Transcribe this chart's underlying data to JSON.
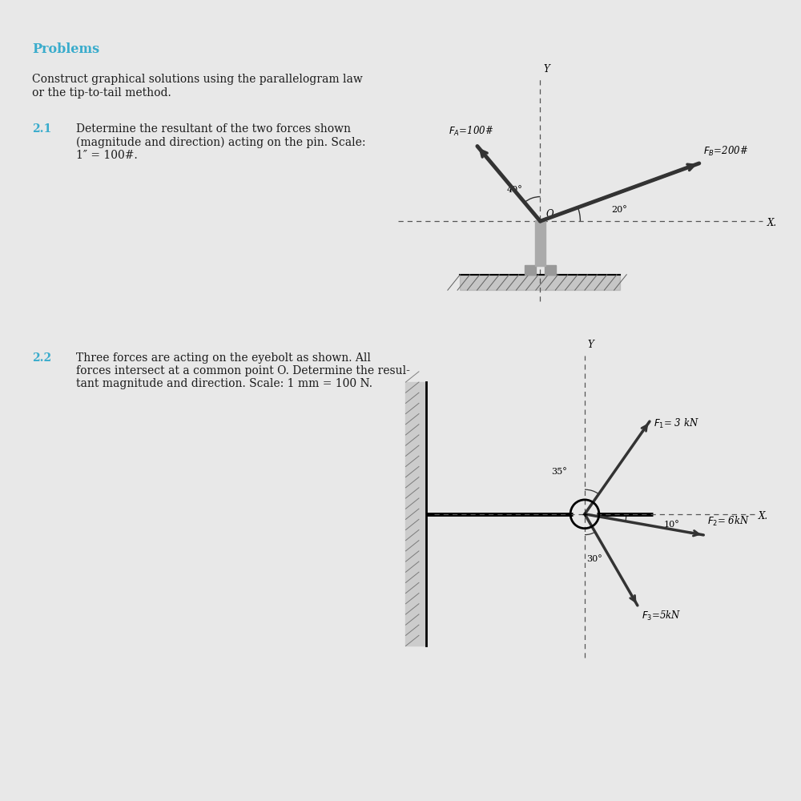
{
  "bg_color": "#e8e8e8",
  "page_bg": "#ffffff",
  "title": "Problems",
  "title_color": "#3aaccc",
  "title_fontsize": 11.5,
  "body_fontsize": 10,
  "section_color": "#3aaccc",
  "text_color": "#1a1a1a",
  "para1": "Construct graphical solutions using the parallelogram law\nor the tip-to-tail method.",
  "sec21": "2.1",
  "para21": "  Determine the resultant of the two forces shown\n(magnitude and direction) acting on the pin. Scale:\n1″ = 100#.",
  "sec22": "2.2",
  "para22": "  Three forces are acting on the eyebolt as shown. All\nforces intersect at a common point O. Determine the resul-\ntant magnitude and direction. Scale: 1 mm = 100 N."
}
